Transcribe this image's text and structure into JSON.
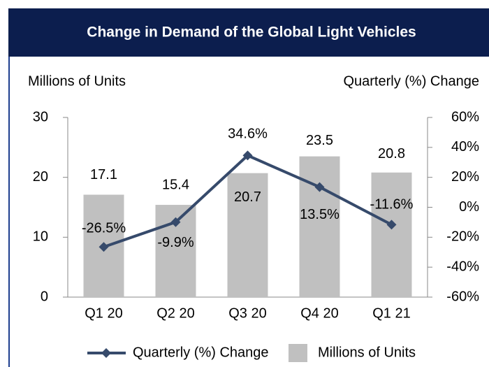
{
  "chart_data": {
    "type": "bar",
    "title": "Change in Demand of the Global Light Vehicles",
    "ylabel": "Millions of Units",
    "y2label": "Quarterly (%) Change",
    "categories": [
      "Q1 20",
      "Q2 20",
      "Q3 20",
      "Q4 20",
      "Q1 21"
    ],
    "series": [
      {
        "name": "Millions of Units",
        "type": "bar",
        "color": "#c0c0c0",
        "values": [
          17.1,
          15.4,
          20.7,
          23.5,
          20.8
        ]
      },
      {
        "name": "Quarterly (%) Change",
        "type": "line",
        "axis": "y2",
        "color": "#364a6b",
        "values": [
          -26.5,
          -9.9,
          34.6,
          13.5,
          -11.6
        ],
        "value_labels": [
          "-26.5%",
          "-9.9%",
          "34.6%",
          "13.5%",
          "-11.6%"
        ]
      }
    ],
    "ylim": [
      0,
      30
    ],
    "yticks": [
      0,
      10,
      20,
      30
    ],
    "y2lim": [
      -60,
      60
    ],
    "y2ticks": [
      {
        "value": -60,
        "label": "-60%"
      },
      {
        "value": -40,
        "label": "-40%"
      },
      {
        "value": -20,
        "label": "-20%"
      },
      {
        "value": 0,
        "label": "0%"
      },
      {
        "value": 20,
        "label": "20%"
      },
      {
        "value": 40,
        "label": "40%"
      },
      {
        "value": 60,
        "label": "60%"
      }
    ],
    "grid": false,
    "legend": "bottom"
  }
}
